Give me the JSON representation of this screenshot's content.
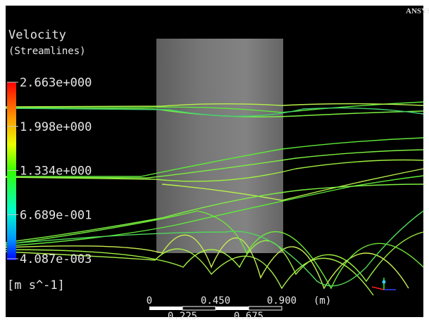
{
  "logo": "ANSYS",
  "legend": {
    "title": "Velocity",
    "subtitle": "(Streamlines)",
    "labels": [
      "2.663e+000",
      "1.998e+000",
      "1.334e+000",
      "6.689e-001",
      "4.087e-003"
    ],
    "units": "[m s^-1]"
  },
  "scale_bar": {
    "top_labels": [
      "0",
      "0.450",
      "0.900"
    ],
    "unit": "(m)",
    "bottom_labels": [
      "0.225",
      "0.675"
    ]
  }
}
